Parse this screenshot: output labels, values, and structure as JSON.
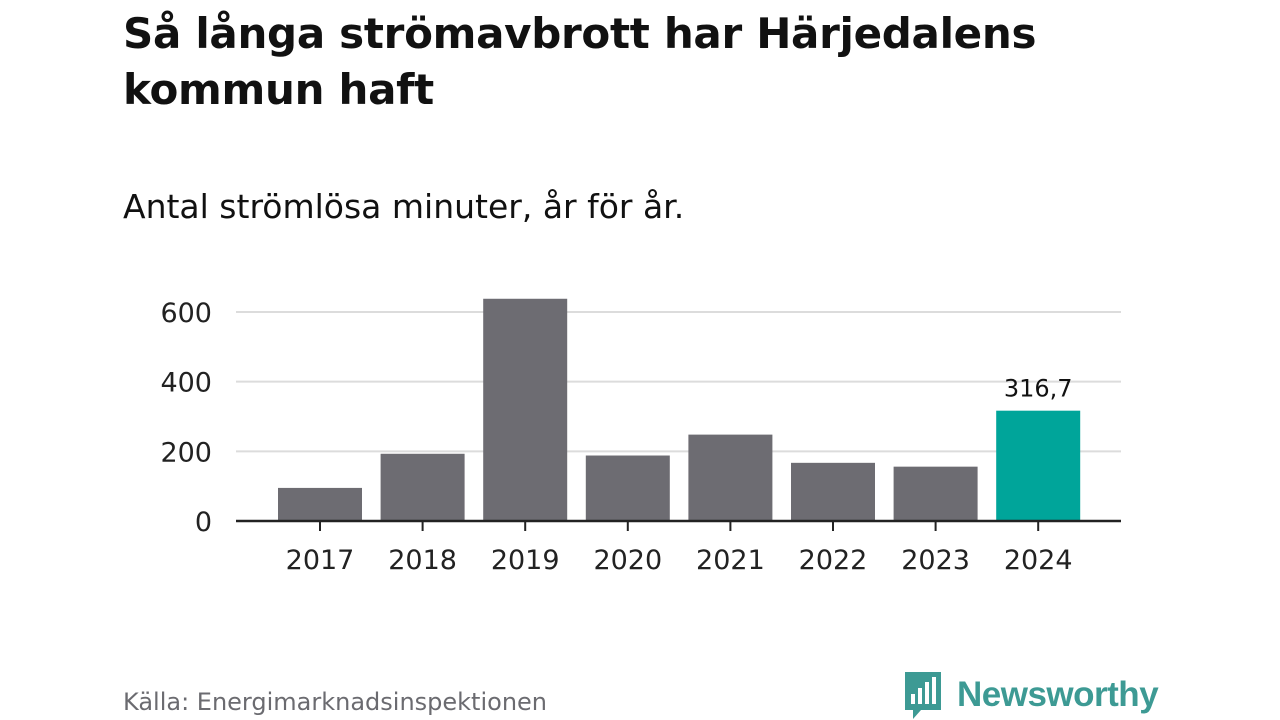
{
  "header": {
    "title": "Så långa strömavbrott har Härjedalens kommun haft",
    "subtitle": "Antal strömlösa minuter, år för år."
  },
  "footer": {
    "source": "Källa: Energimarknadsinspektionen",
    "brand": "Newsworthy",
    "brand_icon": "bar-chart-speech-bubble-icon"
  },
  "colors": {
    "bar": "#6d6c72",
    "highlight": "#00a59a",
    "grid": "#dcdcdc",
    "axis": "#222222",
    "brand": "#3d9a94"
  },
  "chart_data": {
    "type": "bar",
    "title": "Så långa strömavbrott har Härjedalens kommun haft",
    "subtitle": "Antal strömlösa minuter, år för år.",
    "categories": [
      "2017",
      "2018",
      "2019",
      "2020",
      "2021",
      "2022",
      "2023",
      "2024"
    ],
    "values": [
      95,
      193,
      638,
      188,
      248,
      167,
      156,
      316.7
    ],
    "highlight_index": 7,
    "data_labels": [
      {
        "index": 7,
        "text": "316,7"
      }
    ],
    "yticks": [
      0,
      200,
      400,
      600
    ],
    "ytick_labels": [
      "0",
      "200",
      "400",
      "600"
    ],
    "ylim": [
      0,
      660
    ],
    "grid": true,
    "legend": "none"
  }
}
